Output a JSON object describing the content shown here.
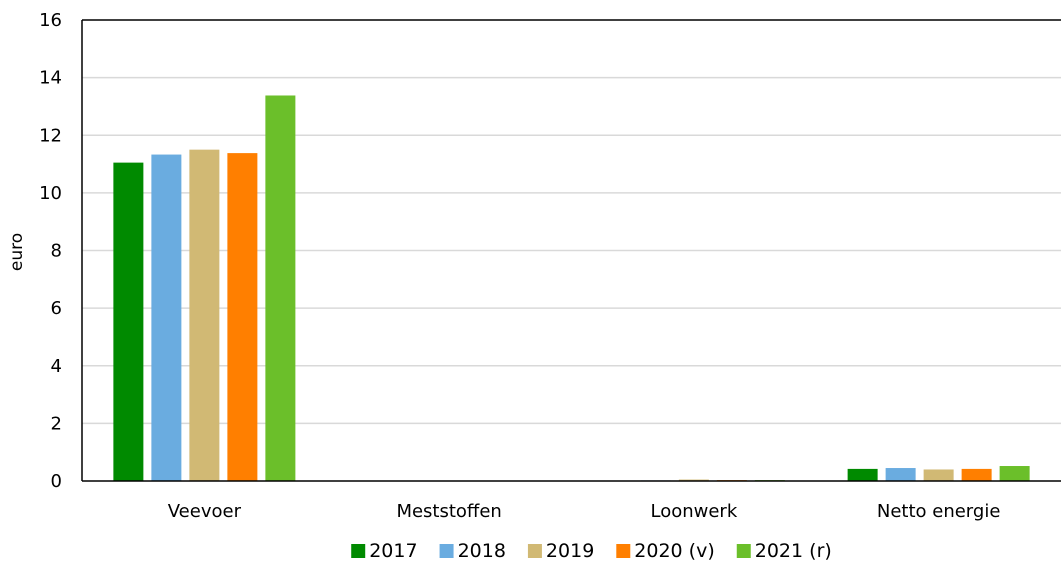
{
  "chart_data": {
    "type": "bar",
    "ylabel": "euro",
    "ylim": [
      0,
      16
    ],
    "yticks": [
      0,
      2,
      4,
      6,
      8,
      10,
      12,
      14,
      16
    ],
    "grid": true,
    "legend_position": "bottom",
    "categories": [
      "Veevoer",
      "Meststoffen",
      "Loonwerk",
      "Netto energie"
    ],
    "series": [
      {
        "name": "2017",
        "color": "#008a00",
        "values": [
          11.05,
          0.0,
          0.0,
          0.42
        ]
      },
      {
        "name": "2018",
        "color": "#6aace0",
        "values": [
          11.33,
          0.0,
          0.02,
          0.45
        ]
      },
      {
        "name": "2019",
        "color": "#d1b974",
        "values": [
          11.5,
          0.0,
          0.05,
          0.4
        ]
      },
      {
        "name": "2020 (v)",
        "color": "#ff7f00",
        "values": [
          11.38,
          0.0,
          0.03,
          0.42
        ]
      },
      {
        "name": "2021 (r)",
        "color": "#6bbf2a",
        "values": [
          13.38,
          0.0,
          0.03,
          0.52
        ]
      }
    ]
  }
}
